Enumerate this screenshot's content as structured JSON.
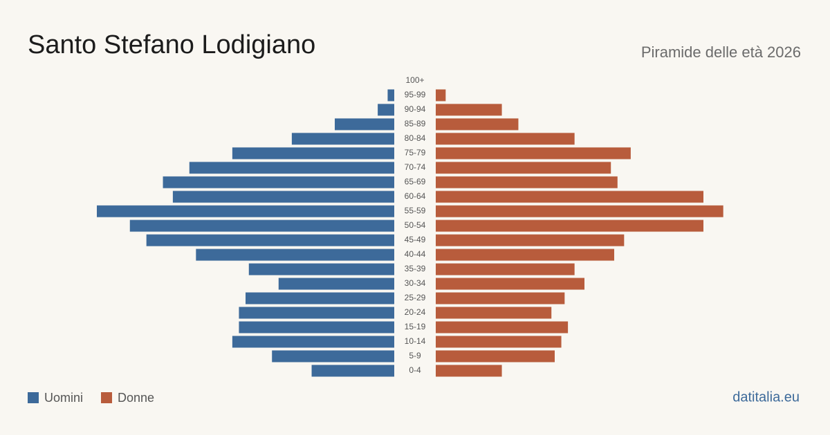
{
  "chart_data": {
    "type": "pyramid",
    "title": "Santo Stefano Lodigiano",
    "subtitle": "Piramide delle età 2026",
    "brand": "datitalia.eu",
    "categories": [
      "100+",
      "95-99",
      "90-94",
      "85-89",
      "80-84",
      "75-79",
      "70-74",
      "65-69",
      "60-64",
      "55-59",
      "50-54",
      "45-49",
      "40-44",
      "35-39",
      "30-34",
      "25-29",
      "20-24",
      "15-19",
      "10-14",
      "5-9",
      "0-4"
    ],
    "series": [
      {
        "name": "Uomini",
        "color": "#3d6a9a",
        "values": [
          0,
          2,
          5,
          18,
          31,
          49,
          62,
          70,
          67,
          90,
          80,
          75,
          60,
          44,
          35,
          45,
          47,
          47,
          49,
          37,
          25
        ]
      },
      {
        "name": "Donne",
        "color": "#b85c3c",
        "values": [
          0,
          3,
          20,
          25,
          42,
          59,
          53,
          55,
          81,
          87,
          81,
          57,
          54,
          42,
          45,
          39,
          35,
          40,
          38,
          36,
          20
        ]
      }
    ]
  }
}
